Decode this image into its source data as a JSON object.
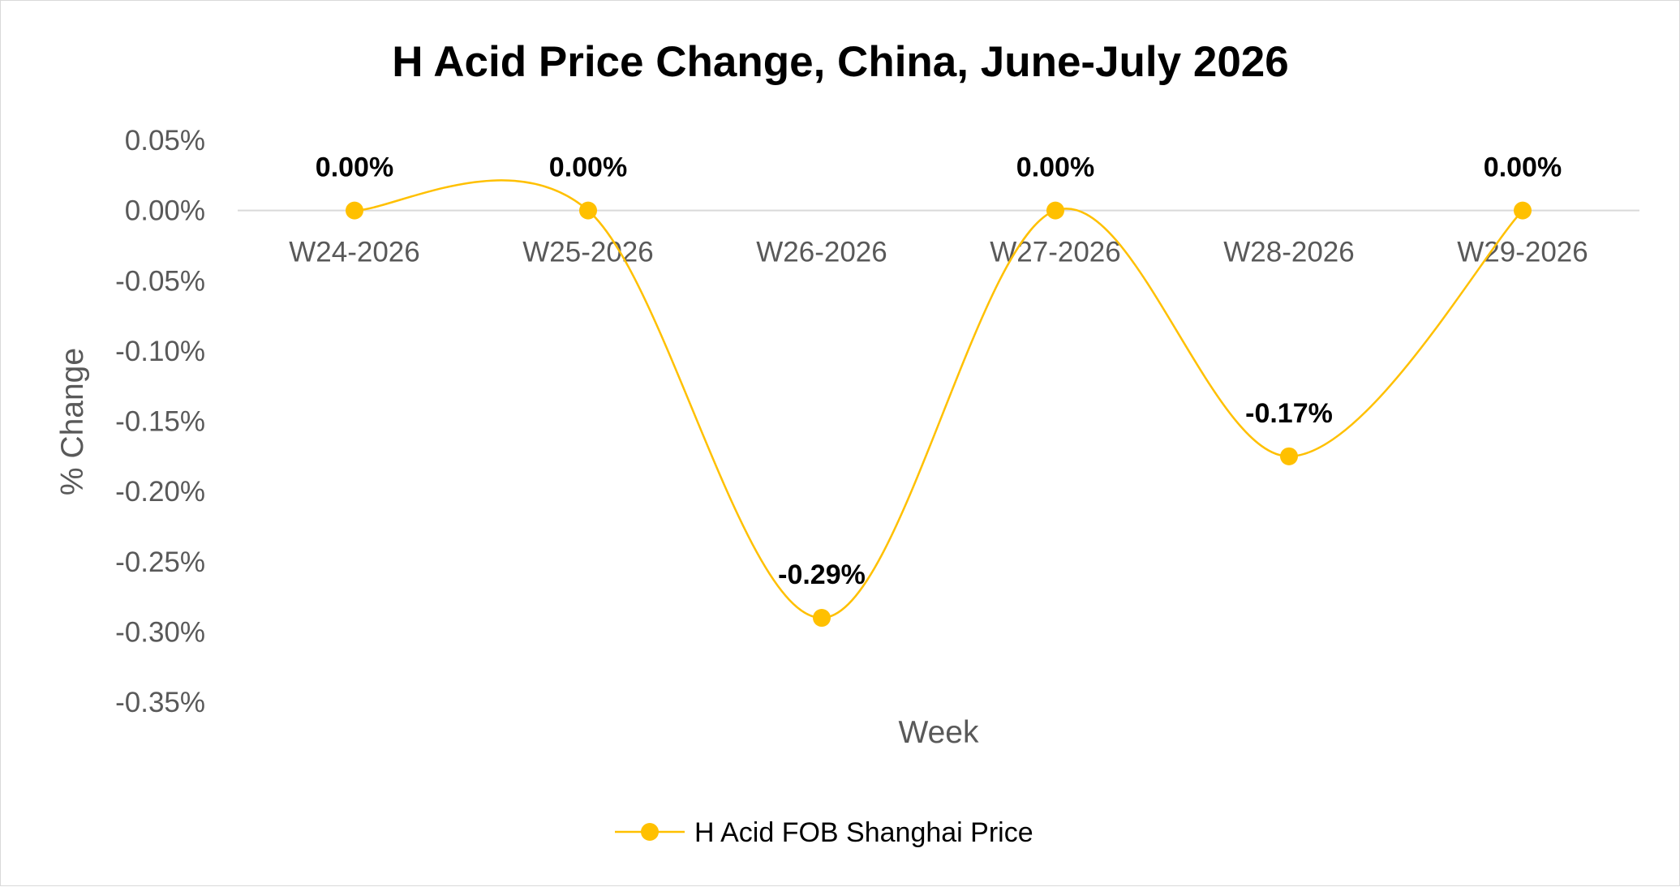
{
  "chart_data": {
    "type": "line",
    "title": "H Acid Price Change, China, June-July 2026",
    "xlabel": "Week",
    "ylabel": "% Change",
    "categories": [
      "W24-2026",
      "W25-2026",
      "W26-2026",
      "W27-2026",
      "W28-2026",
      "W29-2026"
    ],
    "series": [
      {
        "name": "H Acid FOB Shanghai Price",
        "values": [
          0.0,
          0.0,
          -0.29,
          0.0,
          -0.175,
          0.0
        ],
        "labels": [
          "0.00%",
          "0.00%",
          "-0.29%",
          "0.00%",
          "-0.17%",
          "0.00%"
        ],
        "color": "#FFC000",
        "smooth": true
      }
    ],
    "ylim": [
      -0.35,
      0.05
    ],
    "yticks": [
      0.05,
      0.0,
      -0.05,
      -0.1,
      -0.15,
      -0.2,
      -0.25,
      -0.3,
      -0.35
    ],
    "ytick_labels": [
      "0.05%",
      "0.00%",
      "-0.05%",
      "-0.10%",
      "-0.15%",
      "-0.20%",
      "-0.25%",
      "-0.30%",
      "-0.35%"
    ],
    "grid": false,
    "legend": "bottom"
  }
}
